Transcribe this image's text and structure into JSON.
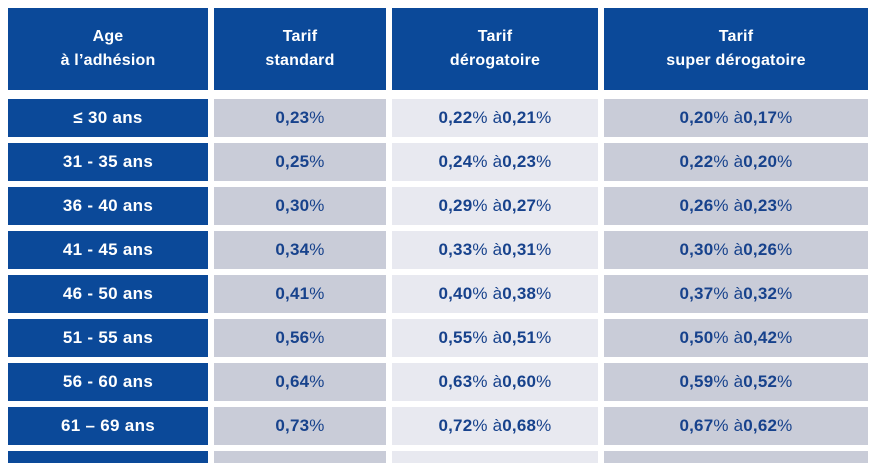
{
  "chart_data": {
    "type": "table",
    "title": "",
    "columns": [
      {
        "id": "age",
        "label": "Age\nà l’adhésion"
      },
      {
        "id": "tarif_standard",
        "label": "Tarif\nstandard"
      },
      {
        "id": "tarif_derogatoire",
        "label": "Tarif\ndérogatoire"
      },
      {
        "id": "tarif_super_derogatoire",
        "label": "Tarif\nsuper dérogatoire"
      }
    ],
    "rows": [
      [
        "≤ 30 ans",
        "0,23%",
        "0,22% à 0,21%",
        "0,20% à 0,17%"
      ],
      [
        "31 - 35 ans",
        "0,25%",
        "0,24% à 0,23%",
        "0,22% à 0,20%"
      ],
      [
        "36 - 40 ans",
        "0,30%",
        "0,29% à 0,27%",
        "0,26% à 0,23%"
      ],
      [
        "41 - 45 ans",
        "0,34%",
        "0,33% à 0,31%",
        "0,30% à 0,26%"
      ],
      [
        "46 - 50 ans",
        "0,41%",
        "0,40% à 0,38%",
        "0,37% à 0,32%"
      ],
      [
        "51 - 55 ans",
        "0,56%",
        "0,55% à 0,51%",
        "0,50% à 0,42%"
      ],
      [
        "56 - 60 ans",
        "0,64%",
        "0,63% à 0,60%",
        "0,59% à 0,52%"
      ],
      [
        "61 – 69 ans",
        "0,73%",
        "0,72% à 0,68%",
        "0,67% à 0,62%"
      ]
    ],
    "partial_next_row_visible": true,
    "layout": {
      "grid": "off",
      "header_position": "top"
    }
  },
  "colors": {
    "header_blue": "#0b4999",
    "cell_grey": "#c9ccd8",
    "cell_light_grey": "#e8e9f0",
    "value_navy": "#17428c",
    "header_text": "#ffffff",
    "background": "#ffffff"
  }
}
